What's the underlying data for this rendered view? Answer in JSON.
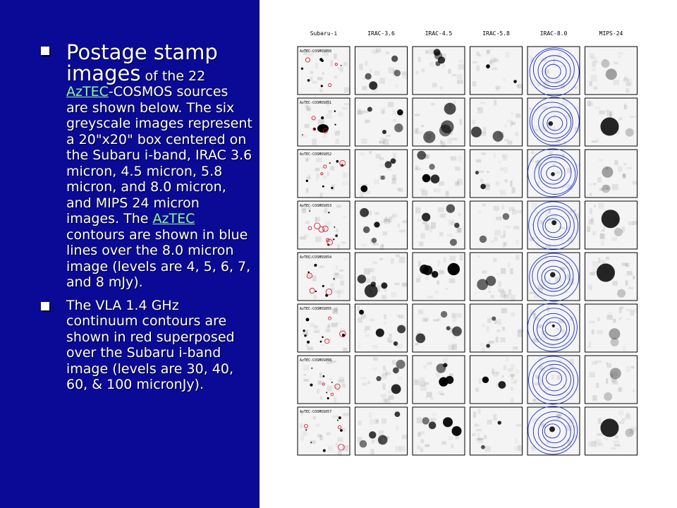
{
  "slide": {
    "bullets": [
      {
        "lead_big": "Postage stamp images",
        "parts": [
          {
            "t": " of the 22 ",
            "link": false
          },
          {
            "t": "AzTEC",
            "link": true
          },
          {
            "t": "-COSMOS sources are shown below. The six greyscale images represent a 20\"x20\" box centered on the Subaru i-band, IRAC 3.6 micron, 4.5 micron, 5.8 micron, and 8.0 micron, and MIPS 24 micron images. The ",
            "link": false
          },
          {
            "t": "AzTEC",
            "link": true
          },
          {
            "t": " contours are shown in blue lines over the 8.0 micron image (levels are 4, 5, 6, 7, and 8 mJy).",
            "link": false
          }
        ]
      },
      {
        "lead_big": "",
        "parts": [
          {
            "t": "The VLA 1.4 GHz continuum contours are shown in red superposed over the Subaru i-band image (levels are 30, 40, 60, & 100 micronJy).",
            "link": false
          }
        ]
      }
    ]
  },
  "figure": {
    "columns": [
      "Subaru-i",
      "IRAC-3.6",
      "IRAC-4.5",
      "IRAC-5.8",
      "IRAC-8.0",
      "MIPS-24"
    ],
    "rows": [
      "AzTEC-COSMOS050",
      "AzTEC-COSMOS051",
      "AzTEC-COSMOS052",
      "AzTEC-COSMOS053",
      "AzTEC-COSMOS054",
      "AzTEC-COSMOS055",
      "AzTEC-COSMOS056",
      "AzTEC-COSMOS057"
    ],
    "colors": {
      "radio_contour": "#e0001a",
      "aztec_contour": "#1a2fd0",
      "panel_bg": "#f2f2f2",
      "source": "#000000"
    }
  }
}
